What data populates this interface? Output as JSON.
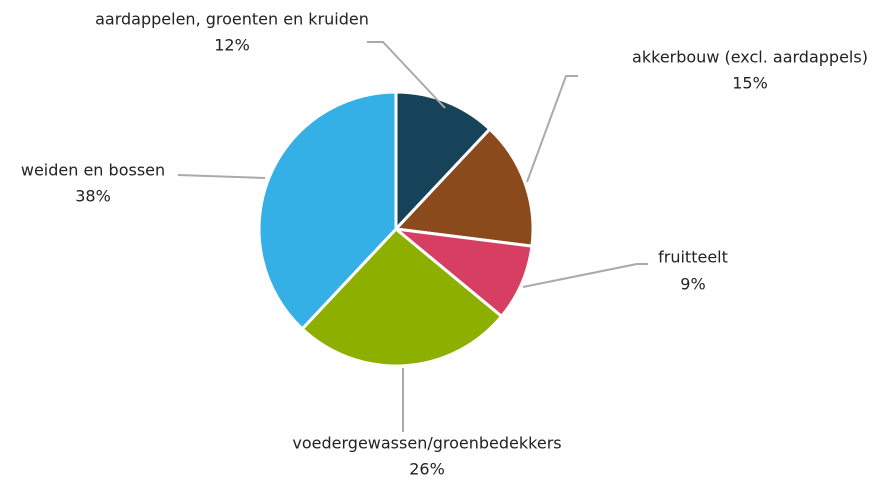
{
  "chart_data": {
    "type": "pie",
    "categories": [
      "aardappelen, groenten en kruiden",
      "akkerbouw (excl. aardappels)",
      "fruitteelt",
      "voedergewassen/groenbedekkers",
      "weiden en bossen"
    ],
    "values": [
      12,
      15,
      9,
      26,
      38
    ],
    "value_labels": [
      "12%",
      "15%",
      "9%",
      "26%",
      "38%"
    ],
    "colors": [
      "#16435a",
      "#8b4a1c",
      "#d63f62",
      "#8db000",
      "#35b0e6"
    ]
  }
}
